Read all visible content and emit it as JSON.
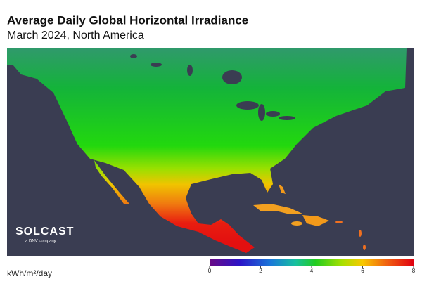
{
  "header": {
    "title": "Average Daily Global Horizontal Irradiance",
    "subtitle": "March 2024, North America"
  },
  "logo": {
    "name": "SOLCAST",
    "tagline": "a DNV company"
  },
  "colorbar": {
    "label": "kWh/m²/day",
    "range": [
      0,
      8
    ],
    "ticks": [
      0,
      2,
      4,
      6,
      8
    ]
  }
}
